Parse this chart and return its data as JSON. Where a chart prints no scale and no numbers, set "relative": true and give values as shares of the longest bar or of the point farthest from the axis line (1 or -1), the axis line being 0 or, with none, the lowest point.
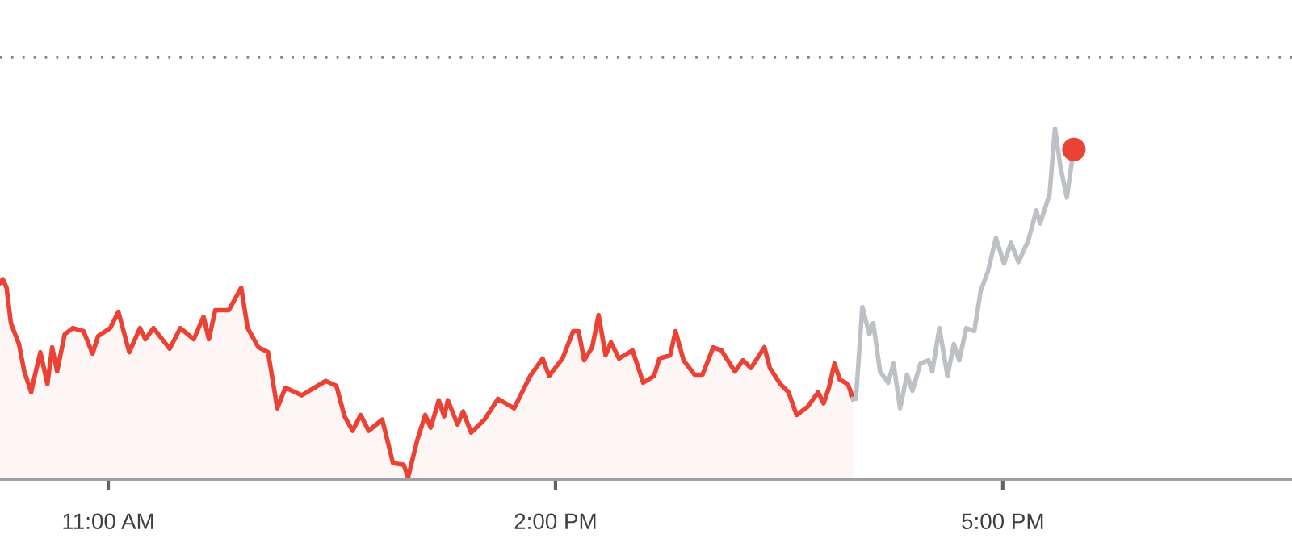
{
  "chart_data": {
    "type": "line",
    "relative": true,
    "tick_labels": "x",
    "xlim": [
      10.274,
      18.94
    ],
    "xticks": [
      {
        "value": 11,
        "label": "11:00 AM"
      },
      {
        "value": 14,
        "label": "2:00 PM"
      },
      {
        "value": 17,
        "label": "5:00 PM"
      }
    ],
    "ref_lines": [
      {
        "axis": "y",
        "value": 1.202,
        "label": null,
        "color": "#80868b",
        "line_style": "dotted"
      }
    ],
    "series": [
      {
        "type": "area",
        "color": "#ea4335",
        "x": [
          10.274,
          10.293,
          10.318,
          10.347,
          10.401,
          10.437,
          10.483,
          10.509,
          10.545,
          10.592,
          10.624,
          10.657,
          10.708,
          10.762,
          10.834,
          10.895,
          10.932,
          11.014,
          11.068,
          11.141,
          11.213,
          11.249,
          11.303,
          11.412,
          11.484,
          11.574,
          11.639,
          11.675,
          11.718,
          11.809,
          11.892,
          11.935,
          12.007,
          12.072,
          12.134,
          12.188,
          12.297,
          12.459,
          12.53,
          12.585,
          12.639,
          12.693,
          12.747,
          12.838,
          12.91,
          12.982,
          13.011,
          13.072,
          13.126,
          13.163,
          13.217,
          13.253,
          13.278,
          13.343,
          13.38,
          13.434,
          13.524,
          13.614,
          13.722,
          13.83,
          13.914,
          13.957,
          14.047,
          14.119,
          14.155,
          14.192,
          14.246,
          14.289,
          14.336,
          14.372,
          14.426,
          14.517,
          14.588,
          14.661,
          14.697,
          14.769,
          14.805,
          14.859,
          14.932,
          14.986,
          15.058,
          15.113,
          15.203,
          15.257,
          15.311,
          15.401,
          15.438,
          15.509,
          15.563,
          15.617,
          15.69,
          15.762,
          15.798,
          15.834,
          15.871,
          15.907,
          15.961,
          15.997
        ],
        "values": [
          0.56,
          0.57,
          0.546,
          0.445,
          0.385,
          0.307,
          0.248,
          0.298,
          0.362,
          0.271,
          0.376,
          0.307,
          0.413,
          0.431,
          0.422,
          0.358,
          0.408,
          0.431,
          0.477,
          0.362,
          0.431,
          0.399,
          0.431,
          0.372,
          0.431,
          0.399,
          0.463,
          0.399,
          0.482,
          0.482,
          0.546,
          0.431,
          0.376,
          0.362,
          0.202,
          0.261,
          0.239,
          0.28,
          0.266,
          0.179,
          0.138,
          0.183,
          0.138,
          0.17,
          0.046,
          0.041,
          0.005,
          0.11,
          0.183,
          0.147,
          0.225,
          0.179,
          0.225,
          0.156,
          0.193,
          0.133,
          0.17,
          0.229,
          0.202,
          0.294,
          0.344,
          0.294,
          0.344,
          0.422,
          0.422,
          0.339,
          0.376,
          0.468,
          0.353,
          0.39,
          0.344,
          0.367,
          0.275,
          0.294,
          0.344,
          0.353,
          0.422,
          0.339,
          0.298,
          0.298,
          0.376,
          0.367,
          0.307,
          0.339,
          0.317,
          0.376,
          0.317,
          0.271,
          0.248,
          0.183,
          0.206,
          0.248,
          0.216,
          0.261,
          0.33,
          0.284,
          0.271,
          0.229
        ]
      },
      {
        "color": "#bdc1c6",
        "x": [
          15.997,
          16.015,
          16.058,
          16.105,
          16.131,
          16.177,
          16.231,
          16.267,
          16.311,
          16.358,
          16.394,
          16.448,
          16.502,
          16.527,
          16.575,
          16.629,
          16.672,
          16.708,
          16.755,
          16.809,
          16.852,
          16.9,
          16.954,
          17.008,
          17.055,
          17.105,
          17.17,
          17.225,
          17.25,
          17.314,
          17.35,
          17.387,
          17.43,
          17.466
        ],
        "values": [
          0.229,
          0.229,
          0.491,
          0.413,
          0.445,
          0.307,
          0.275,
          0.33,
          0.202,
          0.298,
          0.252,
          0.33,
          0.339,
          0.307,
          0.431,
          0.294,
          0.385,
          0.339,
          0.431,
          0.422,
          0.537,
          0.592,
          0.688,
          0.615,
          0.674,
          0.619,
          0.679,
          0.766,
          0.729,
          0.812,
          1.0,
          0.89,
          0.803,
          0.913
        ]
      },
      {
        "type": "scatter",
        "color": "#ea4335",
        "marker": "circle",
        "x": [
          17.477
        ],
        "values": [
          0.94
        ]
      }
    ]
  }
}
